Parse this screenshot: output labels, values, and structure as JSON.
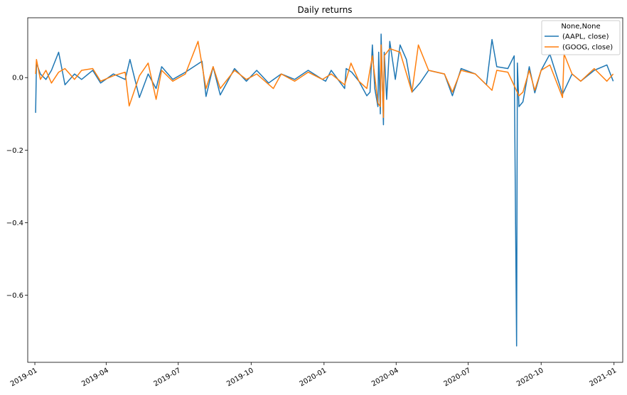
{
  "chart_data": {
    "type": "line",
    "title": "Daily returns",
    "xlabel": "",
    "ylabel": "",
    "x_range": [
      "2018-12-23",
      "2021-01-12"
    ],
    "ylim": [
      -0.785,
      0.165
    ],
    "x_ticks": [
      "2019-01",
      "2019-04",
      "2019-07",
      "2019-10",
      "2020-01",
      "2020-04",
      "2020-07",
      "2020-10",
      "2021-01"
    ],
    "x_tick_dates": [
      "2019-01-01",
      "2019-04-01",
      "2019-07-01",
      "2019-10-01",
      "2020-01-01",
      "2020-04-01",
      "2020-07-01",
      "2020-10-01",
      "2021-01-01"
    ],
    "y_ticks": [
      -0.6,
      -0.4,
      -0.2,
      0.0
    ],
    "y_tick_labels": [
      "−0.6",
      "−0.4",
      "−0.2",
      "0.0"
    ],
    "grid": false,
    "legend": {
      "title": "None,None",
      "position": "top-right"
    },
    "series": [
      {
        "name": "(AAPL, close)",
        "color": "#1f77b4",
        "points": [
          [
            "2019-01-02",
            -0.097
          ],
          [
            "2019-01-03",
            0.04
          ],
          [
            "2019-01-08",
            0.01
          ],
          [
            "2019-01-15",
            -0.005
          ],
          [
            "2019-01-22",
            0.02
          ],
          [
            "2019-01-31",
            0.07
          ],
          [
            "2019-02-08",
            -0.02
          ],
          [
            "2019-02-20",
            0.01
          ],
          [
            "2019-03-01",
            -0.005
          ],
          [
            "2019-03-15",
            0.02
          ],
          [
            "2019-03-25",
            -0.015
          ],
          [
            "2019-04-10",
            0.01
          ],
          [
            "2019-04-25",
            -0.005
          ],
          [
            "2019-05-01",
            0.05
          ],
          [
            "2019-05-13",
            -0.055
          ],
          [
            "2019-05-24",
            0.01
          ],
          [
            "2019-06-03",
            -0.03
          ],
          [
            "2019-06-10",
            0.03
          ],
          [
            "2019-06-24",
            -0.005
          ],
          [
            "2019-07-10",
            0.015
          ],
          [
            "2019-07-31",
            0.045
          ],
          [
            "2019-08-05",
            -0.052
          ],
          [
            "2019-08-14",
            0.03
          ],
          [
            "2019-08-23",
            -0.048
          ],
          [
            "2019-09-10",
            0.025
          ],
          [
            "2019-09-25",
            -0.01
          ],
          [
            "2019-10-08",
            0.02
          ],
          [
            "2019-10-23",
            -0.015
          ],
          [
            "2019-11-08",
            0.01
          ],
          [
            "2019-11-25",
            -0.005
          ],
          [
            "2019-12-12",
            0.02
          ],
          [
            "2019-12-30",
            -0.005
          ],
          [
            "2020-01-03",
            -0.01
          ],
          [
            "2020-01-10",
            0.02
          ],
          [
            "2020-01-27",
            -0.03
          ],
          [
            "2020-01-29",
            0.025
          ],
          [
            "2020-02-05",
            0.015
          ],
          [
            "2020-02-14",
            -0.01
          ],
          [
            "2020-02-24",
            -0.05
          ],
          [
            "2020-02-28",
            -0.04
          ],
          [
            "2020-03-02",
            0.09
          ],
          [
            "2020-03-05",
            -0.03
          ],
          [
            "2020-03-09",
            -0.08
          ],
          [
            "2020-03-10",
            0.07
          ],
          [
            "2020-03-12",
            -0.1
          ],
          [
            "2020-03-13",
            0.12
          ],
          [
            "2020-03-16",
            -0.13
          ],
          [
            "2020-03-17",
            0.07
          ],
          [
            "2020-03-20",
            -0.06
          ],
          [
            "2020-03-24",
            0.1
          ],
          [
            "2020-03-31",
            -0.005
          ],
          [
            "2020-04-06",
            0.09
          ],
          [
            "2020-04-14",
            0.05
          ],
          [
            "2020-04-21",
            -0.04
          ],
          [
            "2020-05-01",
            -0.015
          ],
          [
            "2020-05-12",
            0.02
          ],
          [
            "2020-06-01",
            0.01
          ],
          [
            "2020-06-11",
            -0.05
          ],
          [
            "2020-06-22",
            0.025
          ],
          [
            "2020-07-10",
            0.01
          ],
          [
            "2020-07-24",
            -0.02
          ],
          [
            "2020-07-31",
            0.105
          ],
          [
            "2020-08-06",
            0.03
          ],
          [
            "2020-08-20",
            0.025
          ],
          [
            "2020-08-28",
            0.06
          ],
          [
            "2020-08-31",
            -0.74
          ],
          [
            "2020-09-01",
            0.04
          ],
          [
            "2020-09-03",
            -0.08
          ],
          [
            "2020-09-08",
            -0.067
          ],
          [
            "2020-09-16",
            0.03
          ],
          [
            "2020-09-23",
            -0.042
          ],
          [
            "2020-10-01",
            0.02
          ],
          [
            "2020-10-12",
            0.065
          ],
          [
            "2020-10-28",
            -0.046
          ],
          [
            "2020-11-09",
            0.01
          ],
          [
            "2020-11-20",
            -0.01
          ],
          [
            "2020-12-07",
            0.02
          ],
          [
            "2020-12-23",
            0.035
          ],
          [
            "2020-12-31",
            -0.01
          ]
        ]
      },
      {
        "name": "(GOOG, close)",
        "color": "#ff7f0e",
        "points": [
          [
            "2019-01-02",
            0.01
          ],
          [
            "2019-01-03",
            0.05
          ],
          [
            "2019-01-08",
            -0.005
          ],
          [
            "2019-01-15",
            0.02
          ],
          [
            "2019-01-22",
            -0.015
          ],
          [
            "2019-01-31",
            0.015
          ],
          [
            "2019-02-08",
            0.025
          ],
          [
            "2019-02-20",
            -0.005
          ],
          [
            "2019-03-01",
            0.02
          ],
          [
            "2019-03-15",
            0.025
          ],
          [
            "2019-03-25",
            -0.01
          ],
          [
            "2019-04-10",
            0.005
          ],
          [
            "2019-04-25",
            0.015
          ],
          [
            "2019-04-30",
            -0.078
          ],
          [
            "2019-05-13",
            0.005
          ],
          [
            "2019-05-24",
            0.04
          ],
          [
            "2019-06-03",
            -0.06
          ],
          [
            "2019-06-10",
            0.02
          ],
          [
            "2019-06-24",
            -0.01
          ],
          [
            "2019-07-10",
            0.01
          ],
          [
            "2019-07-26",
            0.1
          ],
          [
            "2019-08-05",
            -0.03
          ],
          [
            "2019-08-14",
            0.03
          ],
          [
            "2019-08-23",
            -0.03
          ],
          [
            "2019-09-10",
            0.02
          ],
          [
            "2019-09-25",
            -0.005
          ],
          [
            "2019-10-08",
            0.01
          ],
          [
            "2019-10-29",
            -0.03
          ],
          [
            "2019-11-08",
            0.01
          ],
          [
            "2019-11-25",
            -0.01
          ],
          [
            "2019-12-12",
            0.015
          ],
          [
            "2019-12-30",
            -0.005
          ],
          [
            "2020-01-10",
            0.01
          ],
          [
            "2020-01-27",
            -0.02
          ],
          [
            "2020-02-04",
            0.04
          ],
          [
            "2020-02-14",
            -0.01
          ],
          [
            "2020-02-24",
            -0.03
          ],
          [
            "2020-03-02",
            0.06
          ],
          [
            "2020-03-09",
            -0.07
          ],
          [
            "2020-03-12",
            -0.08
          ],
          [
            "2020-03-13",
            0.09
          ],
          [
            "2020-03-16",
            -0.11
          ],
          [
            "2020-03-17",
            0.06
          ],
          [
            "2020-03-24",
            0.08
          ],
          [
            "2020-04-06",
            0.07
          ],
          [
            "2020-04-21",
            -0.04
          ],
          [
            "2020-04-29",
            0.09
          ],
          [
            "2020-05-12",
            0.02
          ],
          [
            "2020-06-01",
            0.01
          ],
          [
            "2020-06-11",
            -0.04
          ],
          [
            "2020-06-22",
            0.02
          ],
          [
            "2020-07-10",
            0.01
          ],
          [
            "2020-07-24",
            -0.02
          ],
          [
            "2020-07-31",
            -0.035
          ],
          [
            "2020-08-06",
            0.02
          ],
          [
            "2020-08-20",
            0.015
          ],
          [
            "2020-09-03",
            -0.05
          ],
          [
            "2020-09-08",
            -0.04
          ],
          [
            "2020-09-16",
            0.02
          ],
          [
            "2020-09-23",
            -0.035
          ],
          [
            "2020-10-01",
            0.02
          ],
          [
            "2020-10-12",
            0.035
          ],
          [
            "2020-10-28",
            -0.055
          ],
          [
            "2020-10-30",
            0.065
          ],
          [
            "2020-11-09",
            0.01
          ],
          [
            "2020-11-20",
            -0.01
          ],
          [
            "2020-12-07",
            0.025
          ],
          [
            "2020-12-23",
            -0.01
          ],
          [
            "2020-12-31",
            0.01
          ]
        ]
      }
    ]
  }
}
